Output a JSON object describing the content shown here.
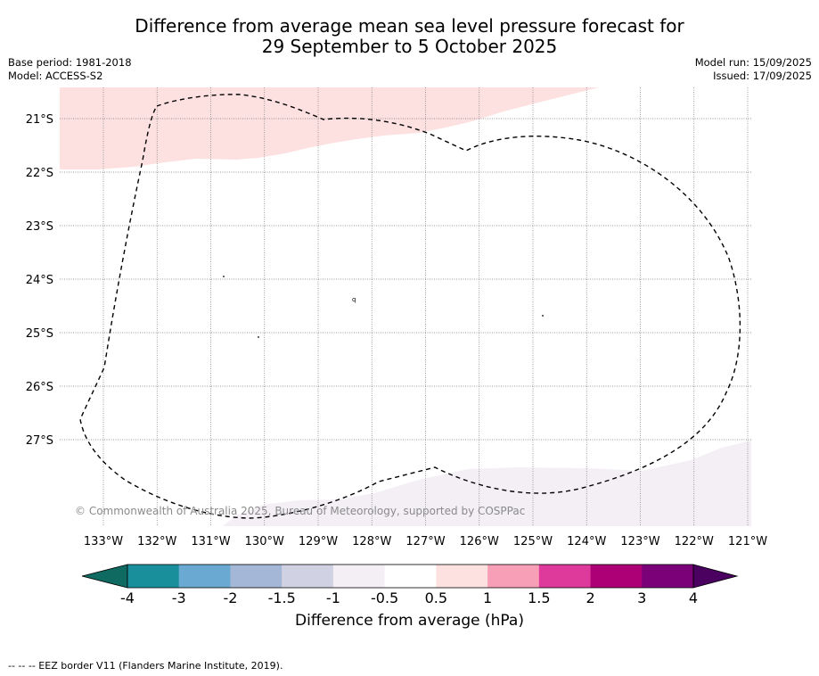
{
  "title_line1": "Difference from average mean sea level pressure forecast for",
  "title_line2": "29 September to 5 October 2025",
  "base_period": "Base period: 1981-2018",
  "model": "Model: ACCESS-S2",
  "model_run": "Model run: 15/09/2025",
  "issued": "Issued: 17/09/2025",
  "copyright": "© Commonwealth of Australia 2025, Bureau of Meteorology, supported by COSPPac",
  "lat_labels": [
    "21°S",
    "22°S",
    "23°S",
    "24°S",
    "25°S",
    "26°S",
    "27°S"
  ],
  "lon_labels": [
    "133°W",
    "132°W",
    "131°W",
    "130°W",
    "129°W",
    "128°W",
    "127°W",
    "126°W",
    "125°W",
    "124°W",
    "123°W",
    "122°W",
    "121°W"
  ],
  "colorbar": {
    "ticks": [
      "-4",
      "-3",
      "-2",
      "-1.5",
      "-1",
      "-0.5",
      "0.5",
      "1",
      "1.5",
      "2",
      "3",
      "4"
    ],
    "colors": [
      "#1a8f9c",
      "#6aa9d2",
      "#a5b7d6",
      "#d1d1e4",
      "#f3eff5",
      "#ffffff",
      "#fde0e0",
      "#f79fb6",
      "#dd3a9b",
      "#ad0076",
      "#7b0178"
    ],
    "under_color": "#0f6b62",
    "over_color": "#4a0160",
    "label": "Difference from average (hPa)"
  },
  "legend_text": "--  --  -- EEZ border V11 (Flanders Marine Institute, 2019)."
}
